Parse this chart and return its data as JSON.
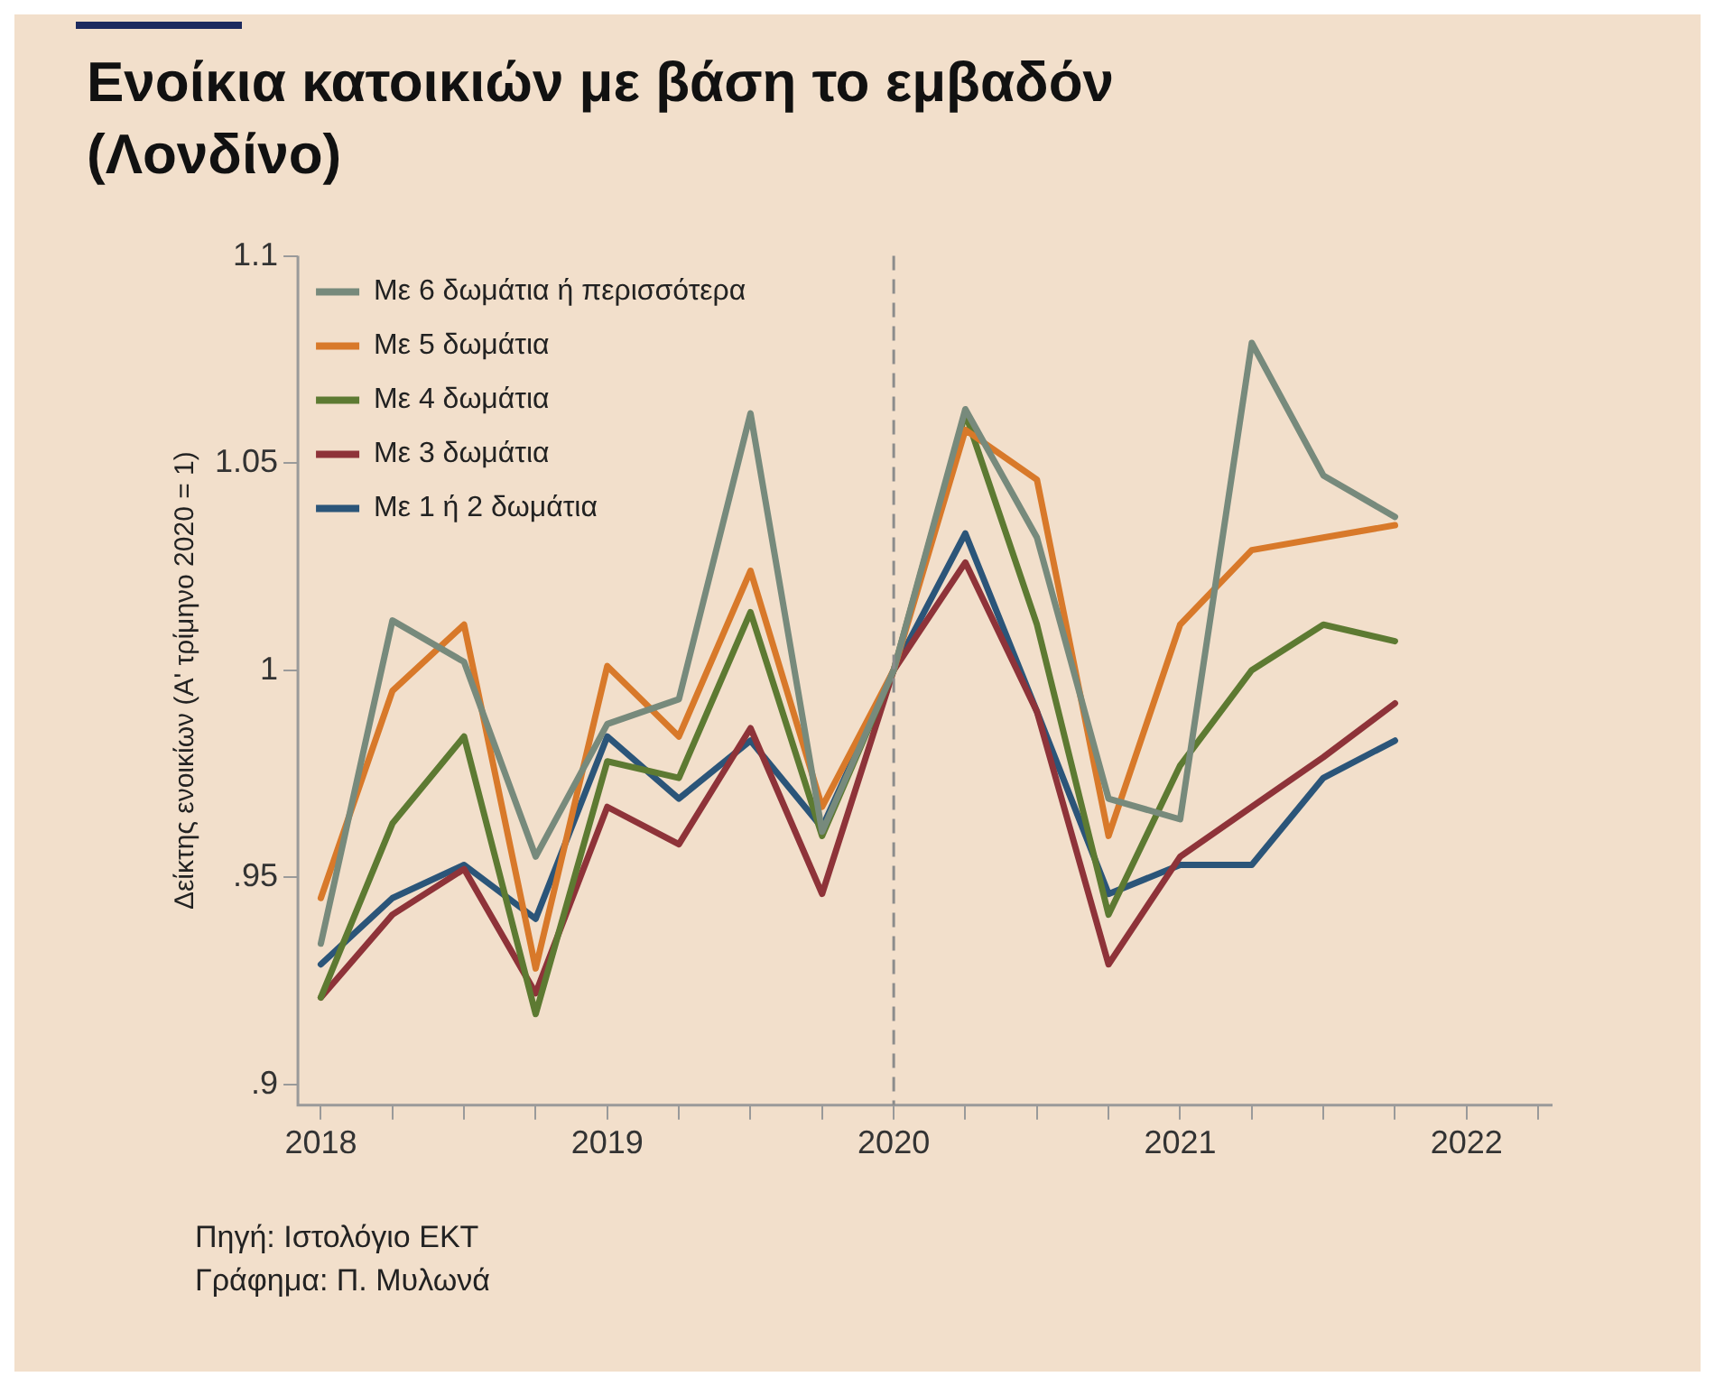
{
  "chart_data": {
    "type": "line",
    "title": "Ενοίκια κατοικιών με βάση το εμβαδόν (Λονδίνο)",
    "ylabel": "Δείκτης ενοικίων (Α' τρίμηνο 2020 = 1)",
    "x": [
      2018,
      2018.25,
      2018.5,
      2018.75,
      2019,
      2019.25,
      2019.5,
      2019.75,
      2020,
      2020.25,
      2020.5,
      2020.75,
      2021,
      2021.25,
      2021.5,
      2021.75
    ],
    "series": [
      {
        "name": "Με 6 δωμάτια ή περισσότερα",
        "color": "#778a7c",
        "values": [
          0.934,
          1.012,
          1.002,
          0.955,
          0.987,
          0.993,
          1.062,
          0.961,
          1.0,
          1.063,
          1.032,
          0.969,
          0.964,
          1.079,
          1.047,
          1.037
        ]
      },
      {
        "name": "Με 5 δωμάτια",
        "color": "#d8792a",
        "values": [
          0.945,
          0.995,
          1.011,
          0.928,
          1.001,
          0.984,
          1.024,
          0.967,
          1.0,
          1.058,
          1.046,
          0.96,
          1.011,
          1.029,
          1.032,
          1.035
        ]
      },
      {
        "name": "Με 4 δωμάτια",
        "color": "#5d7a32",
        "values": [
          0.921,
          0.963,
          0.984,
          0.917,
          0.978,
          0.974,
          1.014,
          0.96,
          1.0,
          1.062,
          1.011,
          0.941,
          0.977,
          1.0,
          1.011,
          1.007
        ]
      },
      {
        "name": "Με 3 δωμάτια",
        "color": "#8e3339",
        "values": [
          0.921,
          0.941,
          0.952,
          0.922,
          0.967,
          0.958,
          0.986,
          0.946,
          1.0,
          1.026,
          0.99,
          0.929,
          0.955,
          0.967,
          0.979,
          0.992
        ]
      },
      {
        "name": "Με 1 ή 2 δωμάτια",
        "color": "#2b5579",
        "values": [
          0.929,
          0.945,
          0.953,
          0.94,
          0.984,
          0.969,
          0.983,
          0.962,
          1.0,
          1.033,
          0.99,
          0.946,
          0.953,
          0.953,
          0.974,
          0.983
        ]
      }
    ],
    "xlim": [
      2017.92,
      2022.3
    ],
    "xticks": [
      2018,
      {
        "value": 2018.25,
        "label": null
      },
      {
        "value": 2018.5,
        "label": null
      },
      {
        "value": 2018.75,
        "label": null
      },
      2019,
      {
        "value": 2019.25,
        "label": null
      },
      {
        "value": 2019.5,
        "label": null
      },
      {
        "value": 2019.75,
        "label": null
      },
      2020,
      {
        "value": 2020.25,
        "label": null
      },
      {
        "value": 2020.5,
        "label": null
      },
      {
        "value": 2020.75,
        "label": null
      },
      2021,
      {
        "value": 2021.25,
        "label": null
      },
      {
        "value": 2021.5,
        "label": null
      },
      {
        "value": 2021.75,
        "label": null
      },
      2022,
      {
        "value": 2022.25,
        "label": null
      }
    ],
    "ylim": [
      0.895,
      1.1
    ],
    "yticks": [
      {
        "value": 0.9,
        "label": ".9"
      },
      {
        "value": 0.95,
        "label": ".95"
      },
      1,
      1.05,
      1.1
    ],
    "ref_lines": [
      {
        "axis": "x",
        "value": 2020,
        "color": "#8c8c8c",
        "line_style": "dashed"
      }
    ],
    "grid": false,
    "legend": "top left",
    "marker": "none",
    "line_style": "solid",
    "annotations": [
      "Πηγή: Ιστολόγιο ΕΚΤ",
      "Γράφημα: Π. Μυλωνά"
    ]
  }
}
